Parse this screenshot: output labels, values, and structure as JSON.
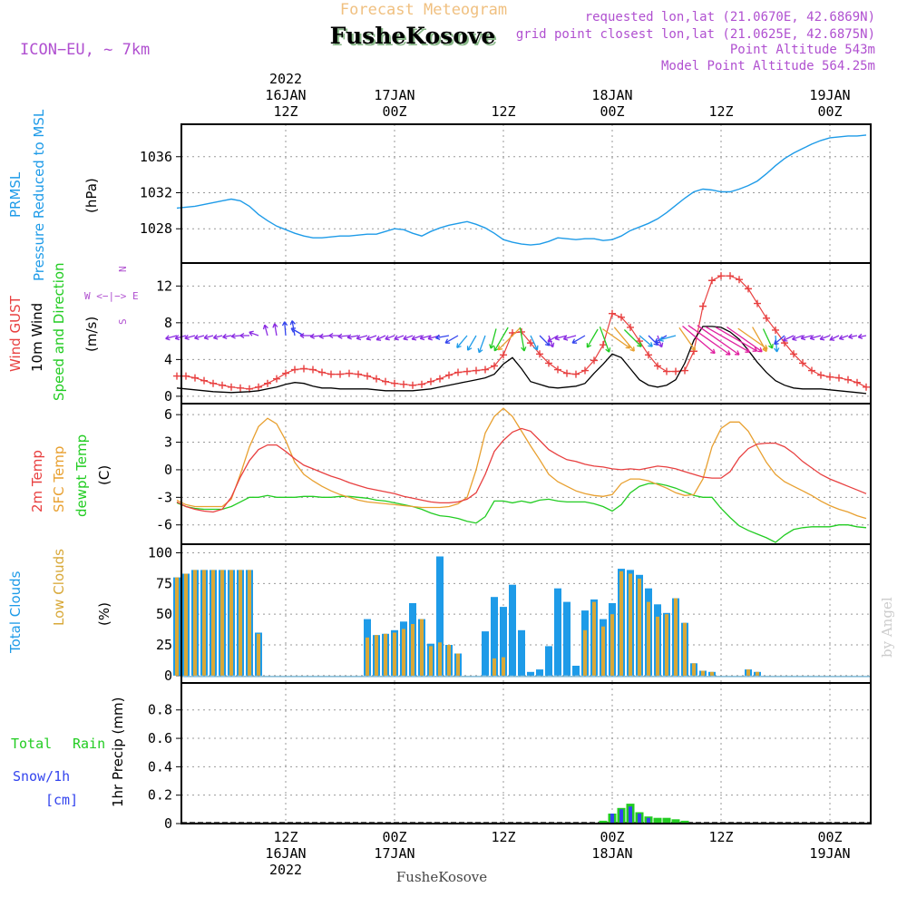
{
  "header": {
    "model": "ICON−EU, ~ 7km",
    "title_top": "Forecast Meteogram",
    "station": "FusheKosove",
    "requested": "requested lon,lat (21.0670E, 42.6869N)",
    "closest": "grid point closest lon,lat (21.0625E, 42.6875N)",
    "point_alt": "Point Altitude 543m",
    "model_alt": "Model Point Altitude 564.25m",
    "footer_station": "FusheKosove",
    "watermark": "by Angel"
  },
  "time_axis": {
    "top_labels": [
      {
        "t": 12,
        "lines": [
          "2022",
          "16JAN",
          "12Z"
        ]
      },
      {
        "t": 24,
        "lines": [
          "17JAN",
          "00Z"
        ]
      },
      {
        "t": 36,
        "lines": [
          "12Z"
        ]
      },
      {
        "t": 48,
        "lines": [
          "18JAN",
          "00Z"
        ]
      },
      {
        "t": 60,
        "lines": [
          "12Z"
        ]
      },
      {
        "t": 72,
        "lines": [
          "19JAN",
          "00Z"
        ]
      }
    ],
    "bottom_labels": [
      {
        "t": 12,
        "lines": [
          "12Z",
          "16JAN",
          "2022"
        ]
      },
      {
        "t": 24,
        "lines": [
          "00Z",
          "17JAN"
        ]
      },
      {
        "t": 36,
        "lines": [
          "12Z"
        ]
      },
      {
        "t": 48,
        "lines": [
          "00Z",
          "18JAN"
        ]
      },
      {
        "t": 60,
        "lines": [
          "12Z"
        ]
      },
      {
        "t": 72,
        "lines": [
          "00Z",
          "19JAN"
        ]
      }
    ],
    "t_min": 0.5,
    "t_max": 76.5
  },
  "panel_labels": {
    "pressure": {
      "l1": "PRMSL",
      "l2": "Pressure Reduced to MSL",
      "unit": "(hPa)"
    },
    "wind": {
      "l1": "Wind GUST",
      "l2": "10m Wind",
      "l3": "Speed and Direction",
      "unit": "(m/s)",
      "compass_n": "N",
      "compass_we": "W <−|−> E",
      "compass_s": "S"
    },
    "temp": {
      "l1": "2m Temp",
      "l2": "SFC Temp",
      "l3": "dewpt Temp",
      "unit": "(C)"
    },
    "cloud": {
      "l1": "Total Clouds",
      "l2": "Low Clouds",
      "unit": "(%)"
    },
    "precip": {
      "l1": "Total",
      "l1b": "Rain",
      "l2": "Snow/1h",
      "l3": "[cm]",
      "unit": "1hr Precip (mm)"
    }
  },
  "colors": {
    "pressure": "#1e9be8",
    "gust": "#e84040",
    "wind": "#000000",
    "temp2m": "#e84040",
    "sfc": "#e8a030",
    "dewpt": "#22cc22",
    "total_cloud": "#1e9be8",
    "low_cloud": "#d8a838",
    "rain": "#22cc22",
    "snow": "#3344ee",
    "header": "#b050d0",
    "title_top": "#f0c080",
    "grid": "#999999"
  },
  "chart_data": [
    {
      "type": "line",
      "name": "PRMSL",
      "ylabel": "(hPa)",
      "ylim": [
        1024.2,
        1039.6
      ],
      "yticks": [
        1028,
        1032,
        1036
      ],
      "x": [
        0,
        1,
        2,
        3,
        4,
        5,
        6,
        7,
        8,
        9,
        10,
        11,
        12,
        13,
        14,
        15,
        16,
        17,
        18,
        19,
        20,
        21,
        22,
        23,
        24,
        25,
        26,
        27,
        28,
        29,
        30,
        31,
        32,
        33,
        34,
        35,
        36,
        37,
        38,
        39,
        40,
        41,
        42,
        43,
        44,
        45,
        46,
        47,
        48,
        49,
        50,
        51,
        52,
        53,
        54,
        55,
        56,
        57,
        58,
        59,
        60,
        61,
        62,
        63,
        64,
        65,
        66,
        67,
        68,
        69,
        70,
        71,
        72,
        73,
        74,
        75,
        76
      ],
      "values": [
        1030.3,
        1030.4,
        1030.5,
        1030.7,
        1030.9,
        1031.1,
        1031.3,
        1031.1,
        1030.5,
        1029.6,
        1028.9,
        1028.3,
        1027.9,
        1027.5,
        1027.2,
        1027.0,
        1027.0,
        1027.1,
        1027.2,
        1027.2,
        1027.3,
        1027.4,
        1027.4,
        1027.7,
        1028.0,
        1027.9,
        1027.5,
        1027.2,
        1027.7,
        1028.1,
        1028.4,
        1028.6,
        1028.8,
        1028.5,
        1028.1,
        1027.5,
        1026.8,
        1026.5,
        1026.3,
        1026.2,
        1026.3,
        1026.6,
        1027.0,
        1026.9,
        1026.8,
        1026.9,
        1026.9,
        1026.7,
        1026.8,
        1027.2,
        1027.8,
        1028.2,
        1028.6,
        1029.1,
        1029.8,
        1030.6,
        1031.4,
        1032.1,
        1032.4,
        1032.3,
        1032.1,
        1032.1,
        1032.4,
        1032.8,
        1033.3,
        1034.1,
        1035.0,
        1035.8,
        1036.4,
        1036.9,
        1037.4,
        1037.8,
        1038.1,
        1038.2,
        1038.3,
        1038.3,
        1038.4
      ]
    },
    {
      "type": "line",
      "name": "Wind",
      "ylabel": "(m/s)",
      "ylim": [
        -0.8,
        14.5
      ],
      "yticks": [
        0,
        4,
        8,
        12
      ],
      "x": [
        0,
        1,
        2,
        3,
        4,
        5,
        6,
        7,
        8,
        9,
        10,
        11,
        12,
        13,
        14,
        15,
        16,
        17,
        18,
        19,
        20,
        21,
        22,
        23,
        24,
        25,
        26,
        27,
        28,
        29,
        30,
        31,
        32,
        33,
        34,
        35,
        36,
        37,
        38,
        39,
        40,
        41,
        42,
        43,
        44,
        45,
        46,
        47,
        48,
        49,
        50,
        51,
        52,
        53,
        54,
        55,
        56,
        57,
        58,
        59,
        60,
        61,
        62,
        63,
        64,
        65,
        66,
        67,
        68,
        69,
        70,
        71,
        72,
        73,
        74,
        75,
        76
      ],
      "gust": [
        2.2,
        2.2,
        2.0,
        1.7,
        1.4,
        1.2,
        1.0,
        0.9,
        0.8,
        1.0,
        1.4,
        1.9,
        2.5,
        2.9,
        3.0,
        2.9,
        2.6,
        2.4,
        2.4,
        2.5,
        2.4,
        2.2,
        1.9,
        1.6,
        1.4,
        1.3,
        1.2,
        1.3,
        1.6,
        1.9,
        2.3,
        2.6,
        2.7,
        2.8,
        2.9,
        3.3,
        4.5,
        6.9,
        7.0,
        5.8,
        4.6,
        3.6,
        2.9,
        2.5,
        2.4,
        2.8,
        3.9,
        5.6,
        9.0,
        8.6,
        7.5,
        6.0,
        4.5,
        3.3,
        2.7,
        2.7,
        2.8,
        4.9,
        9.8,
        12.6,
        13.1,
        13.1,
        12.7,
        11.7,
        10.1,
        8.5,
        7.2,
        5.8,
        4.6,
        3.6,
        2.8,
        2.3,
        2.1,
        2.0,
        1.8,
        1.5,
        1.0
      ],
      "wind": [
        0.9,
        0.8,
        0.7,
        0.6,
        0.5,
        0.45,
        0.4,
        0.45,
        0.5,
        0.6,
        0.8,
        1.0,
        1.3,
        1.5,
        1.4,
        1.1,
        0.9,
        0.9,
        0.8,
        0.8,
        0.8,
        0.8,
        0.7,
        0.6,
        0.6,
        0.6,
        0.6,
        0.7,
        0.8,
        1.0,
        1.2,
        1.4,
        1.6,
        1.8,
        2.0,
        2.4,
        3.5,
        4.2,
        3.0,
        1.6,
        1.3,
        1.0,
        0.9,
        1.0,
        1.1,
        1.4,
        2.5,
        3.5,
        4.6,
        4.2,
        3.0,
        1.8,
        1.2,
        1.0,
        1.2,
        1.8,
        3.6,
        6.1,
        7.6,
        7.6,
        7.5,
        7.0,
        6.2,
        5.0,
        3.7,
        2.6,
        1.7,
        1.2,
        0.9,
        0.8,
        0.8,
        0.8,
        0.7,
        0.6,
        0.5,
        0.4,
        0.3
      ],
      "barbs_t": [
        0,
        1,
        2,
        3,
        4,
        5,
        6,
        7,
        8,
        9,
        10,
        11,
        12,
        13,
        14,
        15,
        16,
        17,
        18,
        19,
        20,
        21,
        22,
        23,
        24,
        25,
        26,
        27,
        28,
        29,
        30,
        31,
        32,
        33,
        34,
        35,
        36,
        37,
        38,
        39,
        40,
        41,
        42,
        43,
        44,
        45,
        46,
        47,
        48,
        49,
        50,
        51,
        52,
        53,
        54,
        55,
        56,
        57,
        58,
        59,
        60,
        61,
        62,
        63,
        64,
        65,
        66,
        67,
        68,
        69,
        70,
        71,
        72,
        73,
        74,
        75,
        76
      ],
      "barbs_dir_to_deg": [
        255,
        255,
        255,
        255,
        255,
        255,
        260,
        265,
        270,
        290,
        345,
        350,
        355,
        350,
        300,
        270,
        265,
        265,
        270,
        265,
        260,
        255,
        250,
        245,
        250,
        250,
        250,
        250,
        255,
        255,
        260,
        240,
        220,
        210,
        200,
        195,
        210,
        225,
        170,
        155,
        135,
        160,
        240,
        255,
        255,
        240,
        210,
        160,
        125,
        140,
        135,
        130,
        135,
        160,
        240,
        255,
        145,
        130,
        125,
        125,
        120,
        120,
        125,
        125,
        150,
        155,
        175,
        230,
        245,
        250,
        255,
        255,
        250,
        245,
        250,
        260,
        260
      ]
    },
    {
      "type": "line",
      "name": "Temperature",
      "ylabel": "(C)",
      "ylim": [
        -8.1,
        7.2
      ],
      "yticks": [
        -6,
        -3,
        0,
        3,
        6
      ],
      "x": [
        0,
        1,
        2,
        3,
        4,
        5,
        6,
        7,
        8,
        9,
        10,
        11,
        12,
        13,
        14,
        15,
        16,
        17,
        18,
        19,
        20,
        21,
        22,
        23,
        24,
        25,
        26,
        27,
        28,
        29,
        30,
        31,
        32,
        33,
        34,
        35,
        36,
        37,
        38,
        39,
        40,
        41,
        42,
        43,
        44,
        45,
        46,
        47,
        48,
        49,
        50,
        51,
        52,
        53,
        54,
        55,
        56,
        57,
        58,
        59,
        60,
        61,
        62,
        63,
        64,
        65,
        66,
        67,
        68,
        69,
        70,
        71,
        72,
        73,
        74,
        75,
        76
      ],
      "temp2m": [
        -3.5,
        -4.0,
        -4.3,
        -4.5,
        -4.6,
        -4.3,
        -3.0,
        -0.8,
        1.0,
        2.2,
        2.7,
        2.7,
        2.0,
        1.2,
        0.5,
        0.1,
        -0.3,
        -0.7,
        -1.0,
        -1.4,
        -1.7,
        -2.0,
        -2.2,
        -2.4,
        -2.6,
        -2.9,
        -3.1,
        -3.3,
        -3.5,
        -3.6,
        -3.6,
        -3.5,
        -3.2,
        -2.5,
        -0.5,
        2.0,
        3.2,
        4.1,
        4.5,
        4.2,
        3.2,
        2.2,
        1.6,
        1.1,
        0.9,
        0.6,
        0.4,
        0.3,
        0.1,
        0.0,
        0.1,
        0.0,
        0.2,
        0.4,
        0.3,
        0.1,
        -0.2,
        -0.5,
        -0.8,
        -0.9,
        -0.9,
        -0.2,
        1.3,
        2.3,
        2.8,
        2.9,
        2.9,
        2.5,
        1.8,
        0.9,
        0.2,
        -0.5,
        -1.0,
        -1.4,
        -1.8,
        -2.2,
        -2.6
      ],
      "sfc": [
        -3.3,
        -3.8,
        -4.0,
        -4.0,
        -4.0,
        -4.0,
        -3.2,
        -0.5,
        2.5,
        4.7,
        5.6,
        5.0,
        3.2,
        0.8,
        -0.5,
        -1.2,
        -1.8,
        -2.3,
        -2.7,
        -3.0,
        -3.3,
        -3.5,
        -3.6,
        -3.7,
        -3.8,
        -3.9,
        -4.0,
        -4.1,
        -4.1,
        -4.1,
        -4.0,
        -3.7,
        -3.0,
        0.0,
        4.0,
        5.8,
        6.7,
        5.8,
        4.2,
        2.6,
        1.1,
        -0.5,
        -1.3,
        -1.8,
        -2.3,
        -2.6,
        -2.8,
        -2.9,
        -2.7,
        -1.5,
        -1.0,
        -1.0,
        -1.2,
        -1.6,
        -2.0,
        -2.5,
        -2.8,
        -2.7,
        -1.0,
        2.5,
        4.5,
        5.2,
        5.2,
        4.2,
        2.5,
        0.8,
        -0.5,
        -1.3,
        -1.8,
        -2.3,
        -2.8,
        -3.4,
        -3.9,
        -4.3,
        -4.6,
        -5.0,
        -5.3
      ],
      "dewpt": [
        -3.6,
        -4.0,
        -4.2,
        -4.3,
        -4.3,
        -4.3,
        -4.0,
        -3.5,
        -3.0,
        -3.0,
        -2.8,
        -3.0,
        -3.0,
        -3.0,
        -2.9,
        -2.9,
        -3.0,
        -3.0,
        -2.9,
        -2.9,
        -3.0,
        -3.1,
        -3.3,
        -3.4,
        -3.6,
        -3.8,
        -4.0,
        -4.3,
        -4.7,
        -5.0,
        -5.1,
        -5.3,
        -5.6,
        -5.8,
        -5.1,
        -3.4,
        -3.4,
        -3.6,
        -3.4,
        -3.6,
        -3.3,
        -3.2,
        -3.4,
        -3.5,
        -3.5,
        -3.5,
        -3.7,
        -4.0,
        -4.5,
        -3.8,
        -2.5,
        -1.8,
        -1.5,
        -1.5,
        -1.7,
        -2.0,
        -2.4,
        -2.8,
        -3.0,
        -3.0,
        -4.2,
        -5.2,
        -6.1,
        -6.6,
        -7.0,
        -7.4,
        -7.9,
        -7.1,
        -6.5,
        -6.3,
        -6.2,
        -6.2,
        -6.2,
        -6.0,
        -6.0,
        -6.2,
        -6.3
      ]
    },
    {
      "type": "bar",
      "name": "Clouds",
      "ylabel": "(%)",
      "ylim": [
        -6,
        107
      ],
      "yticks": [
        0,
        25,
        50,
        75,
        100
      ],
      "x": [
        0,
        1,
        2,
        3,
        4,
        5,
        6,
        7,
        8,
        9,
        10,
        11,
        12,
        13,
        14,
        15,
        16,
        17,
        18,
        19,
        20,
        21,
        22,
        23,
        24,
        25,
        26,
        27,
        28,
        29,
        30,
        31,
        32,
        33,
        34,
        35,
        36,
        37,
        38,
        39,
        40,
        41,
        42,
        43,
        44,
        45,
        46,
        47,
        48,
        49,
        50,
        51,
        52,
        53,
        54,
        55,
        56,
        57,
        58,
        59,
        60,
        61,
        62,
        63,
        64,
        65,
        66,
        67,
        68,
        69,
        70,
        71,
        72,
        73,
        74,
        75,
        76
      ],
      "total": [
        80,
        83,
        86,
        86,
        86,
        86,
        86,
        86,
        86,
        35,
        0,
        0,
        0,
        0,
        0,
        0,
        0,
        0,
        0,
        0,
        0,
        46,
        33,
        34,
        37,
        44,
        59,
        46,
        26,
        97,
        25,
        18,
        0,
        0,
        36,
        64,
        56,
        74,
        37,
        3,
        5,
        24,
        71,
        60,
        8,
        53,
        62,
        46,
        59,
        87,
        86,
        82,
        71,
        58,
        51,
        63,
        43,
        10,
        4,
        3,
        0,
        0,
        0,
        5,
        3,
        0,
        0,
        0,
        0,
        0,
        0,
        0,
        0,
        0,
        0,
        0,
        0
      ],
      "low": [
        80,
        83,
        86,
        86,
        86,
        86,
        86,
        86,
        86,
        34,
        0,
        0,
        0,
        0,
        0,
        0,
        0,
        0,
        0,
        0,
        0,
        31,
        33,
        34,
        35,
        38,
        42,
        46,
        24,
        27,
        25,
        18,
        0,
        0,
        0,
        14,
        15,
        0,
        0,
        0,
        0,
        0,
        0,
        0,
        0,
        37,
        60,
        40,
        50,
        85,
        83,
        79,
        60,
        48,
        50,
        63,
        43,
        10,
        4,
        3,
        0,
        0,
        0,
        5,
        3,
        0,
        0,
        0,
        0,
        0,
        0,
        0,
        0,
        0,
        0,
        0,
        0
      ]
    },
    {
      "type": "bar",
      "name": "1hr Precip",
      "ylabel": "1hr Precip (mm)",
      "ylim": [
        0,
        0.99
      ],
      "yticks": [
        0,
        0.2,
        0.4,
        0.6,
        0.8
      ],
      "x": [
        47,
        48,
        49,
        50,
        51,
        52,
        53,
        54,
        55,
        56
      ],
      "rain": [
        0.02,
        0.07,
        0.11,
        0.14,
        0.08,
        0.05,
        0.04,
        0.04,
        0.03,
        0.02
      ],
      "snow": [
        0.0,
        0.07,
        0.1,
        0.12,
        0.07,
        0.04,
        0.0,
        0.0,
        0.0,
        0.0
      ]
    }
  ]
}
